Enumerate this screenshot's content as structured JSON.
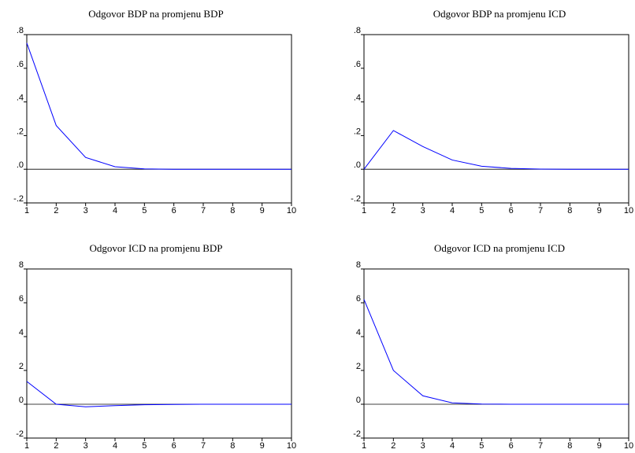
{
  "chart_data": [
    {
      "type": "line",
      "title": "Odgovor BDP na promjenu BDP",
      "x": [
        1,
        2,
        3,
        4,
        5,
        6,
        7,
        8,
        9,
        10
      ],
      "series": [
        {
          "values": [
            0.75,
            0.26,
            0.07,
            0.015,
            0.002,
            0.0,
            0.0,
            0.0,
            0.0,
            0.0
          ],
          "color": "#0000ff"
        }
      ],
      "ylim": [
        -0.2,
        0.8
      ],
      "yticks": [
        -0.2,
        0.0,
        0.2,
        0.4,
        0.6,
        0.8
      ],
      "ytick_labels": [
        "-.2",
        ".0",
        ".2",
        ".4",
        ".6",
        ".8"
      ],
      "xticks": [
        1,
        2,
        3,
        4,
        5,
        6,
        7,
        8,
        9,
        10
      ],
      "xtick_labels": [
        "1",
        "2",
        "3",
        "4",
        "5",
        "6",
        "7",
        "8",
        "9",
        "10"
      ],
      "zero_line": true
    },
    {
      "type": "line",
      "title": "Odgovor BDP na promjenu ICD",
      "x": [
        1,
        2,
        3,
        4,
        5,
        6,
        7,
        8,
        9,
        10
      ],
      "series": [
        {
          "values": [
            0.0,
            0.23,
            0.135,
            0.055,
            0.018,
            0.005,
            0.001,
            0.0,
            0.0,
            0.0
          ],
          "color": "#0000ff"
        }
      ],
      "ylim": [
        -0.2,
        0.8
      ],
      "yticks": [
        -0.2,
        0.0,
        0.2,
        0.4,
        0.6,
        0.8
      ],
      "ytick_labels": [
        "-.2",
        ".0",
        ".2",
        ".4",
        ".6",
        ".8"
      ],
      "xticks": [
        1,
        2,
        3,
        4,
        5,
        6,
        7,
        8,
        9,
        10
      ],
      "xtick_labels": [
        "1",
        "2",
        "3",
        "4",
        "5",
        "6",
        "7",
        "8",
        "9",
        "10"
      ],
      "zero_line": true
    },
    {
      "type": "line",
      "title": "Odgovor ICD na promjenu BDP",
      "x": [
        1,
        2,
        3,
        4,
        5,
        6,
        7,
        8,
        9,
        10
      ],
      "series": [
        {
          "values": [
            1.35,
            0.0,
            -0.15,
            -0.08,
            -0.03,
            -0.01,
            0.0,
            0.0,
            0.0,
            0.0
          ],
          "color": "#0000ff"
        }
      ],
      "ylim": [
        -2,
        8
      ],
      "yticks": [
        -2,
        0,
        2,
        4,
        6,
        8
      ],
      "ytick_labels": [
        "-2",
        "0",
        "2",
        "4",
        "6",
        "8"
      ],
      "xticks": [
        1,
        2,
        3,
        4,
        5,
        6,
        7,
        8,
        9,
        10
      ],
      "xtick_labels": [
        "1",
        "2",
        "3",
        "4",
        "5",
        "6",
        "7",
        "8",
        "9",
        "10"
      ],
      "zero_line": true
    },
    {
      "type": "line",
      "title": "Odgovor ICD na promjenu ICD",
      "x": [
        1,
        2,
        3,
        4,
        5,
        6,
        7,
        8,
        9,
        10
      ],
      "series": [
        {
          "values": [
            6.2,
            2.0,
            0.5,
            0.08,
            0.01,
            0.0,
            0.0,
            0.0,
            0.0,
            0.0
          ],
          "color": "#0000ff"
        }
      ],
      "ylim": [
        -2,
        8
      ],
      "yticks": [
        -2,
        0,
        2,
        4,
        6,
        8
      ],
      "ytick_labels": [
        "-2",
        "0",
        "2",
        "4",
        "6",
        "8"
      ],
      "xticks": [
        1,
        2,
        3,
        4,
        5,
        6,
        7,
        8,
        9,
        10
      ],
      "xtick_labels": [
        "1",
        "2",
        "3",
        "4",
        "5",
        "6",
        "7",
        "8",
        "9",
        "10"
      ],
      "zero_line": true
    }
  ]
}
